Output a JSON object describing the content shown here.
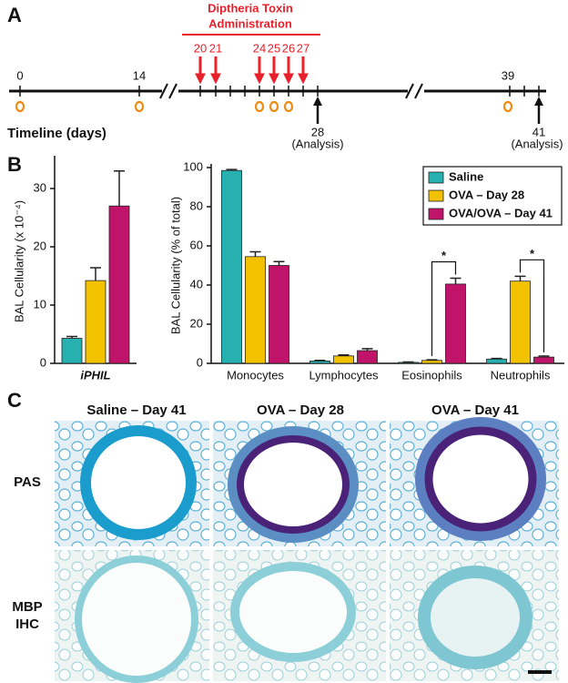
{
  "panels": {
    "a": "A",
    "b": "B",
    "c": "C"
  },
  "timeline": {
    "title": [
      "Diptheria Toxin",
      "Administration"
    ],
    "dt_days": [
      "20",
      "21",
      "24",
      "25",
      "26",
      "27"
    ],
    "days": [
      "0",
      "14",
      "39"
    ],
    "analysis": [
      {
        "day": "28",
        "label": "(Analysis)"
      },
      {
        "day": "41",
        "label": "(Analysis)"
      }
    ],
    "label": "Timeline (days)"
  },
  "chart_data": [
    {
      "type": "bar",
      "ylabel": "BAL Cellularity (x 10⁻⁴)",
      "categories": [
        "iPHIL"
      ],
      "series": [
        {
          "color": "#27b0b0",
          "values": [
            4.3
          ],
          "errors": [
            0.3
          ]
        },
        {
          "color": "#f2c200",
          "values": [
            14.2
          ],
          "errors": [
            2.2
          ]
        },
        {
          "color": "#c0146a",
          "values": [
            27
          ],
          "errors": [
            6
          ]
        }
      ],
      "ylim": [
        0,
        35
      ],
      "yticks": [
        0,
        10,
        20,
        30
      ]
    },
    {
      "type": "bar",
      "ylabel": "BAL Cellularity (% of total)",
      "categories": [
        "Monocytes",
        "Lymphocytes",
        "Eosinophils",
        "Neutrophils"
      ],
      "series": [
        {
          "name": "Saline",
          "color": "#27b0b0",
          "values": [
            98.5,
            1.2,
            0.5,
            2.2
          ],
          "errors": [
            0.5,
            0.3,
            0.2,
            0.3
          ]
        },
        {
          "name": "OVA – Day 28",
          "color": "#f2c200",
          "values": [
            54.5,
            3.8,
            1.5,
            42
          ],
          "errors": [
            2.5,
            0.5,
            0.3,
            2.5
          ]
        },
        {
          "name": "OVA/OVA – Day 41",
          "color": "#c0146a",
          "values": [
            50,
            6.5,
            40.5,
            3.2
          ],
          "errors": [
            2,
            1,
            3,
            0.5
          ]
        }
      ],
      "ylim": [
        0,
        100
      ],
      "yticks": [
        0,
        20,
        40,
        60,
        80,
        100
      ],
      "legend": "top-right",
      "annotations": [
        "*",
        "*"
      ]
    }
  ],
  "micrographs": {
    "columns": [
      "Saline – Day 41",
      "OVA – Day 28",
      "OVA – Day 41"
    ],
    "rows": [
      [
        "PAS"
      ],
      [
        "MBP",
        "IHC"
      ]
    ]
  }
}
